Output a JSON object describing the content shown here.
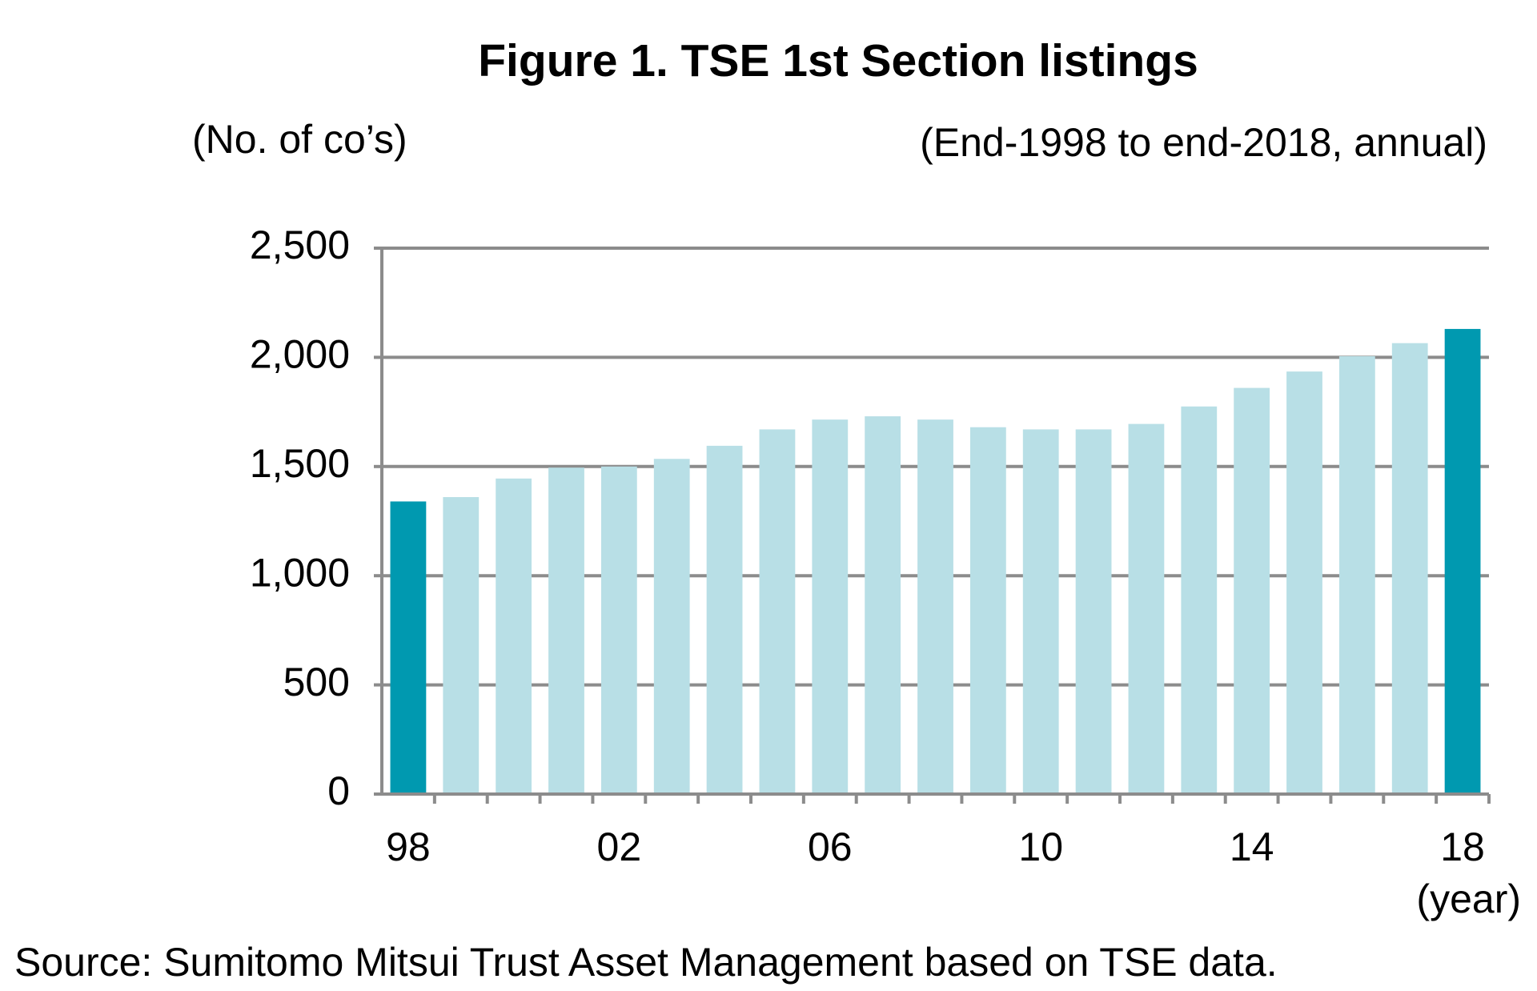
{
  "chart_data": {
    "type": "bar",
    "title": "Figure 1. TSE 1st Section listings",
    "y_label": "(No. of co’s)",
    "subtitle": "(End-1998 to end-2018, annual)",
    "x_label": "(year)",
    "source": "Source: Sumitomo Mitsui Trust Asset Management based on TSE data.",
    "categories": [
      "98",
      null,
      null,
      null,
      "02",
      null,
      null,
      null,
      "06",
      null,
      null,
      null,
      "10",
      null,
      null,
      null,
      "14",
      null,
      null,
      null,
      "18"
    ],
    "values": [
      1340,
      1360,
      1445,
      1495,
      1500,
      1535,
      1595,
      1670,
      1715,
      1730,
      1715,
      1680,
      1670,
      1670,
      1695,
      1775,
      1860,
      1935,
      2005,
      2065,
      2130
    ],
    "colors": [
      "#0099b0",
      "#b8dfe6",
      "#b8dfe6",
      "#b8dfe6",
      "#b8dfe6",
      "#b8dfe6",
      "#b8dfe6",
      "#b8dfe6",
      "#b8dfe6",
      "#b8dfe6",
      "#b8dfe6",
      "#b8dfe6",
      "#b8dfe6",
      "#b8dfe6",
      "#b8dfe6",
      "#b8dfe6",
      "#b8dfe6",
      "#b8dfe6",
      "#b8dfe6",
      "#b8dfe6",
      "#0099b0"
    ],
    "ylim": [
      0,
      2500
    ],
    "yticks": [
      0,
      500,
      {
        "value": 1000,
        "label": "1,000"
      },
      {
        "value": 1500,
        "label": "1,500"
      },
      {
        "value": 2000,
        "label": "2,000"
      },
      {
        "value": 2500,
        "label": "2,500"
      }
    ],
    "grid": true
  }
}
